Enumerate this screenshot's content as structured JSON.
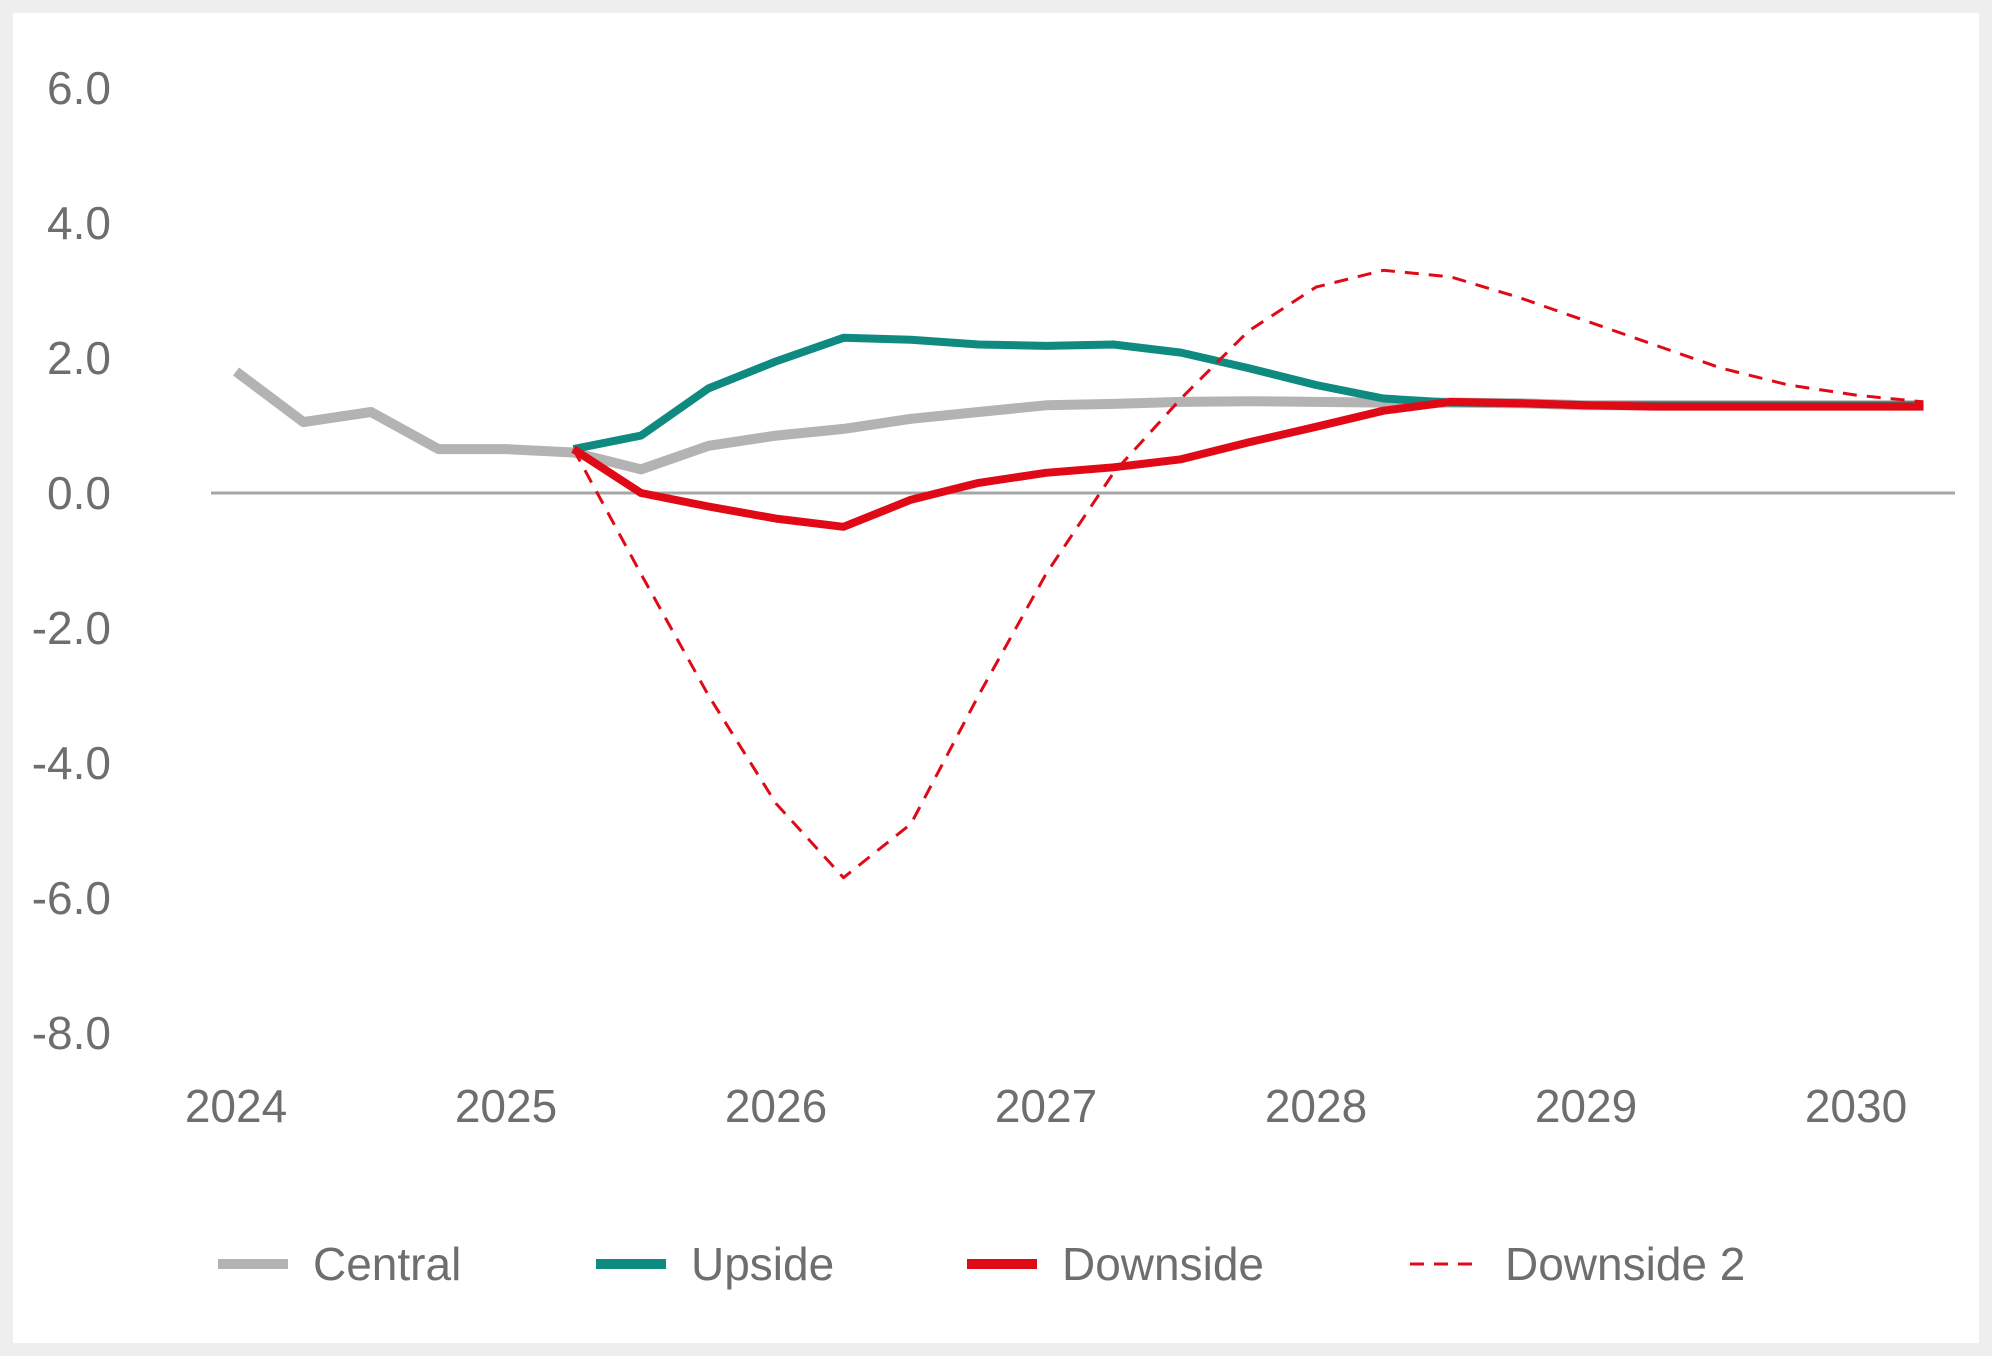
{
  "chart_data": {
    "type": "line",
    "title": "",
    "xlabel": "",
    "ylabel": "",
    "ylim": [
      -8.0,
      6.0
    ],
    "yticks": [
      6.0,
      4.0,
      2.0,
      0.0,
      -2.0,
      -4.0,
      -6.0,
      -8.0
    ],
    "ytick_labels": [
      "6.0",
      "4.0",
      "2.0",
      "0.0",
      "-2.0",
      "-4.0",
      "-6.0",
      "-8.0"
    ],
    "xticks": [
      2024,
      2025,
      2026,
      2027,
      2028,
      2029,
      2030
    ],
    "xtick_labels": [
      "2024",
      "2025",
      "2026",
      "2027",
      "2028",
      "2029",
      "2030"
    ],
    "grid": false,
    "zero_line": true,
    "legend_position": "bottom",
    "series": [
      {
        "name": "Central",
        "color": "#b3b3b3",
        "style": "solid",
        "x": [
          2024.0,
          2024.25,
          2024.5,
          2024.75,
          2025.0,
          2025.25,
          2025.5,
          2025.75,
          2026.0,
          2026.25,
          2026.5,
          2026.75,
          2027.0,
          2027.25,
          2027.5,
          2027.75,
          2028.0,
          2028.25,
          2028.5,
          2028.75,
          2029.0,
          2029.25,
          2029.5,
          2029.75,
          2030.0,
          2030.25
        ],
        "values": [
          1.8,
          1.05,
          1.2,
          0.65,
          0.65,
          0.6,
          0.35,
          0.7,
          0.85,
          0.95,
          1.1,
          1.2,
          1.3,
          1.32,
          1.35,
          1.36,
          1.35,
          1.34,
          1.34,
          1.33,
          1.3,
          1.3,
          1.3,
          1.3,
          1.3,
          1.3
        ]
      },
      {
        "name": "Upside",
        "color": "#0f8a80",
        "style": "solid",
        "x": [
          2025.25,
          2025.5,
          2025.75,
          2026.0,
          2026.25,
          2026.5,
          2026.75,
          2027.0,
          2027.25,
          2027.5,
          2027.75,
          2028.0,
          2028.25,
          2028.5,
          2028.75,
          2029.0,
          2029.25,
          2029.5,
          2029.75,
          2030.0,
          2030.25
        ],
        "values": [
          0.65,
          0.85,
          1.55,
          1.95,
          2.3,
          2.27,
          2.2,
          2.18,
          2.2,
          2.08,
          1.85,
          1.6,
          1.4,
          1.34,
          1.33,
          1.3,
          1.3,
          1.3,
          1.3,
          1.3,
          1.3
        ]
      },
      {
        "name": "Downside",
        "color": "#e00a17",
        "style": "solid",
        "x": [
          2025.25,
          2025.5,
          2025.75,
          2026.0,
          2026.25,
          2026.5,
          2026.75,
          2027.0,
          2027.25,
          2027.5,
          2027.75,
          2028.0,
          2028.25,
          2028.5,
          2028.75,
          2029.0,
          2029.25,
          2029.5,
          2029.75,
          2030.0,
          2030.25
        ],
        "values": [
          0.65,
          0.0,
          -0.2,
          -0.38,
          -0.5,
          -0.1,
          0.15,
          0.3,
          0.38,
          0.5,
          0.75,
          0.98,
          1.22,
          1.35,
          1.33,
          1.3,
          1.28,
          1.28,
          1.28,
          1.28,
          1.28
        ]
      },
      {
        "name": "Downside 2",
        "color": "#e00a17",
        "style": "dashed",
        "x": [
          2025.25,
          2025.5,
          2025.75,
          2026.0,
          2026.25,
          2026.5,
          2026.75,
          2027.0,
          2027.25,
          2027.5,
          2027.75,
          2028.0,
          2028.25,
          2028.5,
          2028.75,
          2029.0,
          2029.25,
          2029.5,
          2029.75,
          2030.0,
          2030.25
        ],
        "values": [
          0.65,
          -1.2,
          -3.0,
          -4.6,
          -5.7,
          -4.9,
          -3.0,
          -1.2,
          0.3,
          1.4,
          2.4,
          3.05,
          3.3,
          3.2,
          2.9,
          2.55,
          2.2,
          1.85,
          1.6,
          1.45,
          1.35
        ]
      }
    ]
  }
}
